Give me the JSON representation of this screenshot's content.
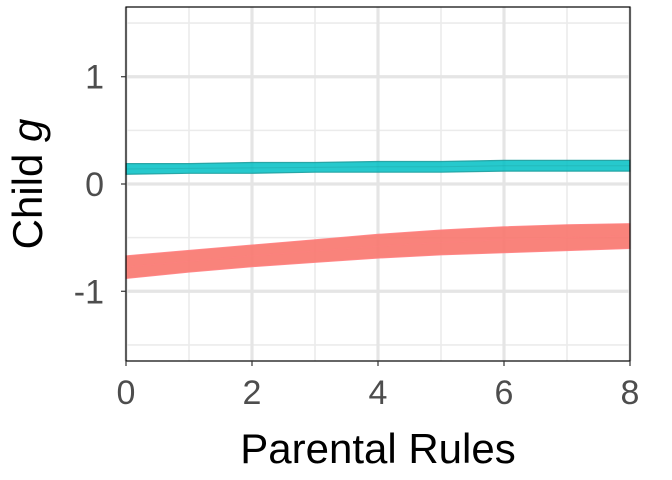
{
  "chart_data": {
    "type": "area",
    "title": "",
    "xlabel": "Parental Rules",
    "ylabel_prefix": "Child ",
    "ylabel_italic": "g",
    "xlim": [
      0,
      8
    ],
    "ylim": [
      -1.65,
      1.65
    ],
    "x_ticks": [
      0,
      2,
      4,
      6,
      8
    ],
    "x_tick_labels": [
      "0",
      "2",
      "4",
      "6",
      "8"
    ],
    "y_ticks": [
      -1,
      0,
      1
    ],
    "y_tick_labels": [
      "-1",
      "0",
      "1"
    ],
    "x_minor": [
      1,
      3,
      5,
      7
    ],
    "y_minor": [
      -1.5,
      -0.5,
      0.5,
      1.5
    ],
    "grid": true,
    "legend": "none",
    "series": [
      {
        "color": "#00bfc4",
        "edge": "#1f9e9e",
        "x": [
          0,
          1,
          2,
          3,
          4,
          5,
          6,
          7,
          8
        ],
        "lower": [
          0.09,
          0.1,
          0.1,
          0.11,
          0.11,
          0.11,
          0.12,
          0.12,
          0.12
        ],
        "upper": [
          0.19,
          0.19,
          0.2,
          0.2,
          0.21,
          0.21,
          0.22,
          0.22,
          0.22
        ]
      },
      {
        "color": "#f8766d",
        "edge": "#ff8080",
        "x": [
          0,
          1,
          2,
          3,
          4,
          5,
          6,
          7,
          8
        ],
        "lower": [
          -0.88,
          -0.82,
          -0.77,
          -0.73,
          -0.69,
          -0.66,
          -0.64,
          -0.62,
          -0.6
        ],
        "upper": [
          -0.67,
          -0.62,
          -0.57,
          -0.52,
          -0.47,
          -0.43,
          -0.4,
          -0.38,
          -0.37
        ]
      }
    ]
  }
}
